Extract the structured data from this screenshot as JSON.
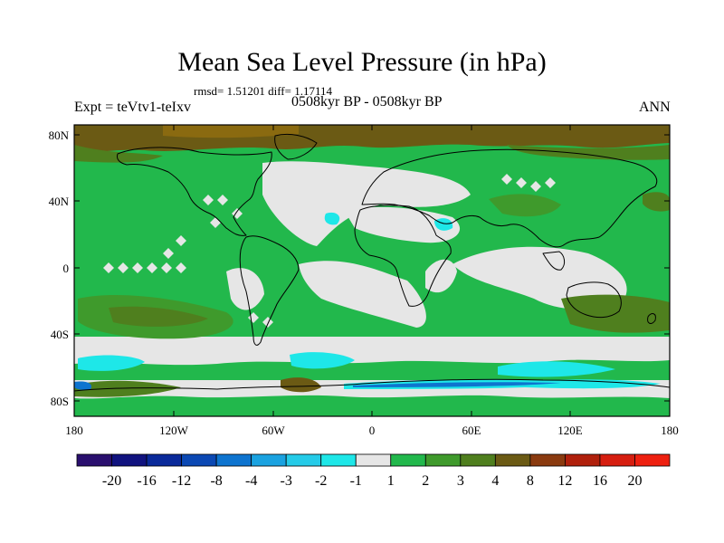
{
  "title": "Mean Sea Level Pressure (in hPa)",
  "stats": "rmsd= 1.51201 diff= 1.17114",
  "experiment": "Expt = teVtv1-teIxv",
  "period": "0508kyr BP - 0508kyr BP",
  "season": "ANN",
  "lat_labels": [
    "80N",
    "40N",
    "0",
    "40S",
    "80S"
  ],
  "lon_labels": [
    "180",
    "120W",
    "60W",
    "0",
    "60E",
    "120E",
    "180"
  ],
  "colorbar": {
    "labels": [
      "-20",
      "-16",
      "-12",
      "-8",
      "-4",
      "-3",
      "-2",
      "-1",
      "1",
      "2",
      "3",
      "4",
      "8",
      "12",
      "16",
      "20"
    ],
    "colors": [
      "#2a0f6e",
      "#11137f",
      "#0a2a9a",
      "#0b48b3",
      "#0e74cf",
      "#1aa2e0",
      "#25cbe8",
      "#1ee7e8",
      "#e6e6e6",
      "#22b84c",
      "#3f9a2c",
      "#4f7f1e",
      "#6b5a14",
      "#8a3a0f",
      "#b0200c",
      "#d61e10",
      "#ee2010"
    ]
  },
  "colors": {
    "land_outline": "#000000",
    "neutral": "#e6e6e6",
    "light_green": "#22b84c",
    "mid_green": "#3f9a2c",
    "olive": "#4f7f1e",
    "brown": "#6b5a14",
    "cyan": "#1ee7e8",
    "blue": "#0e74cf"
  }
}
